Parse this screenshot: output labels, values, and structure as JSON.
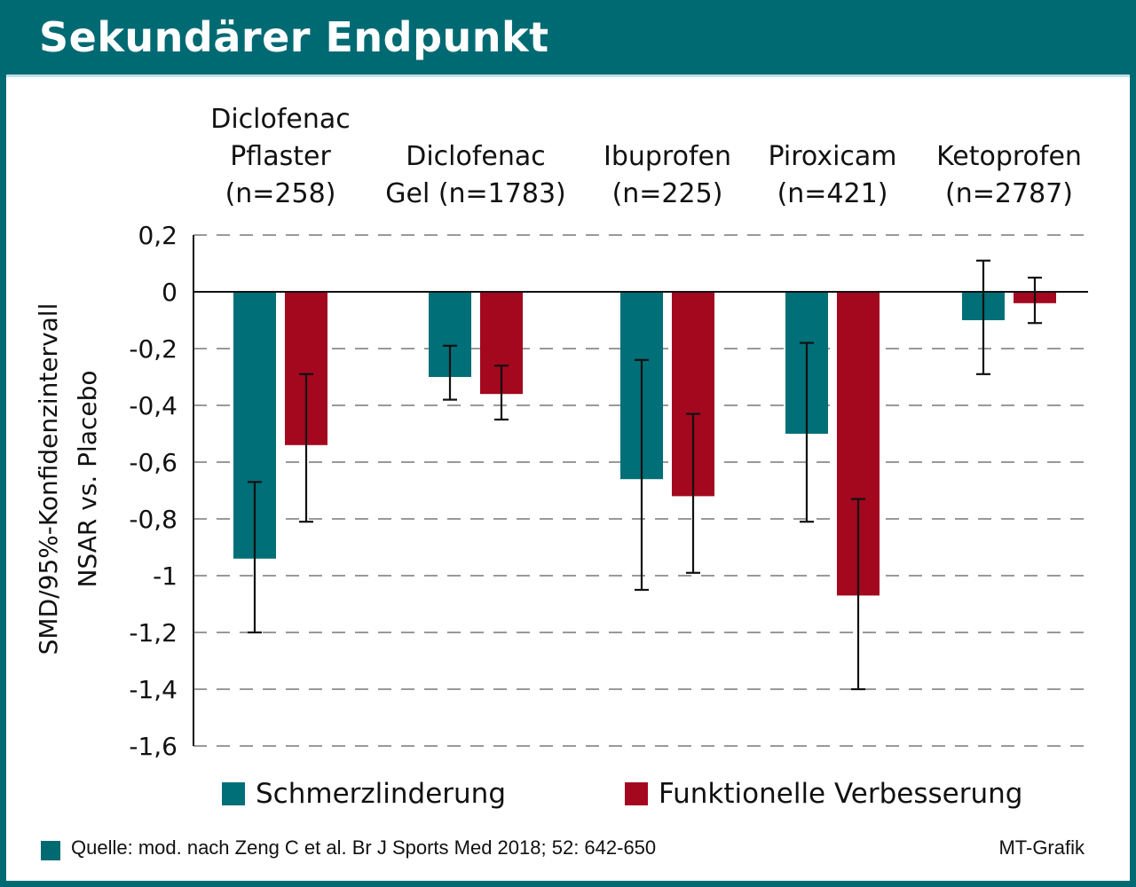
{
  "title": "Sekundärer Endpunkt",
  "source": "Quelle: mod. nach Zeng C et al. Br J Sports Med 2018; 52: 642-650",
  "credit": "MT-Grafik",
  "colors": {
    "header": "#006a73",
    "schmerz": "#006f77",
    "funktion": "#a3081f",
    "grid": "#999999"
  },
  "chart_data": {
    "type": "bar",
    "ylabel": [
      "SMD/95%-Konfidenzintervall",
      "NSAR vs. Placebo"
    ],
    "ylim": [
      -1.6,
      0.2
    ],
    "yticks": [
      0.2,
      0,
      -0.2,
      -0.4,
      -0.6,
      -0.8,
      -1,
      -1.2,
      -1.4,
      -1.6
    ],
    "ytick_labels": [
      "0,2",
      "0",
      "-0,2",
      "-0,4",
      "-0,6",
      "-0,8",
      "-1",
      "-1,2",
      "-1,4",
      "-1,6"
    ],
    "grid": true,
    "categories": [
      [
        "Diclofenac",
        "Pflaster",
        "(n=258)"
      ],
      [
        "Diclofenac",
        "Gel (n=1783)"
      ],
      [
        "Ibuprofen",
        "(n=225)"
      ],
      [
        "Piroxicam",
        "(n=421)"
      ],
      [
        "Ketoprofen",
        "(n=2787)"
      ]
    ],
    "series": [
      {
        "name": "Schmerzlinderung",
        "values": [
          -0.94,
          -0.3,
          -0.66,
          -0.5,
          -0.1
        ],
        "ci_low": [
          -1.2,
          -0.38,
          -1.05,
          -0.81,
          -0.29
        ],
        "ci_high": [
          -0.67,
          -0.19,
          -0.24,
          -0.18,
          0.11
        ]
      },
      {
        "name": "Funktionelle Verbesserung",
        "values": [
          -0.54,
          -0.36,
          -0.72,
          -1.07,
          -0.04
        ],
        "ci_low": [
          -0.81,
          -0.45,
          -0.99,
          -1.4,
          -0.11
        ],
        "ci_high": [
          -0.29,
          -0.26,
          -0.43,
          -0.73,
          0.05
        ]
      }
    ],
    "legend_position": "bottom"
  }
}
